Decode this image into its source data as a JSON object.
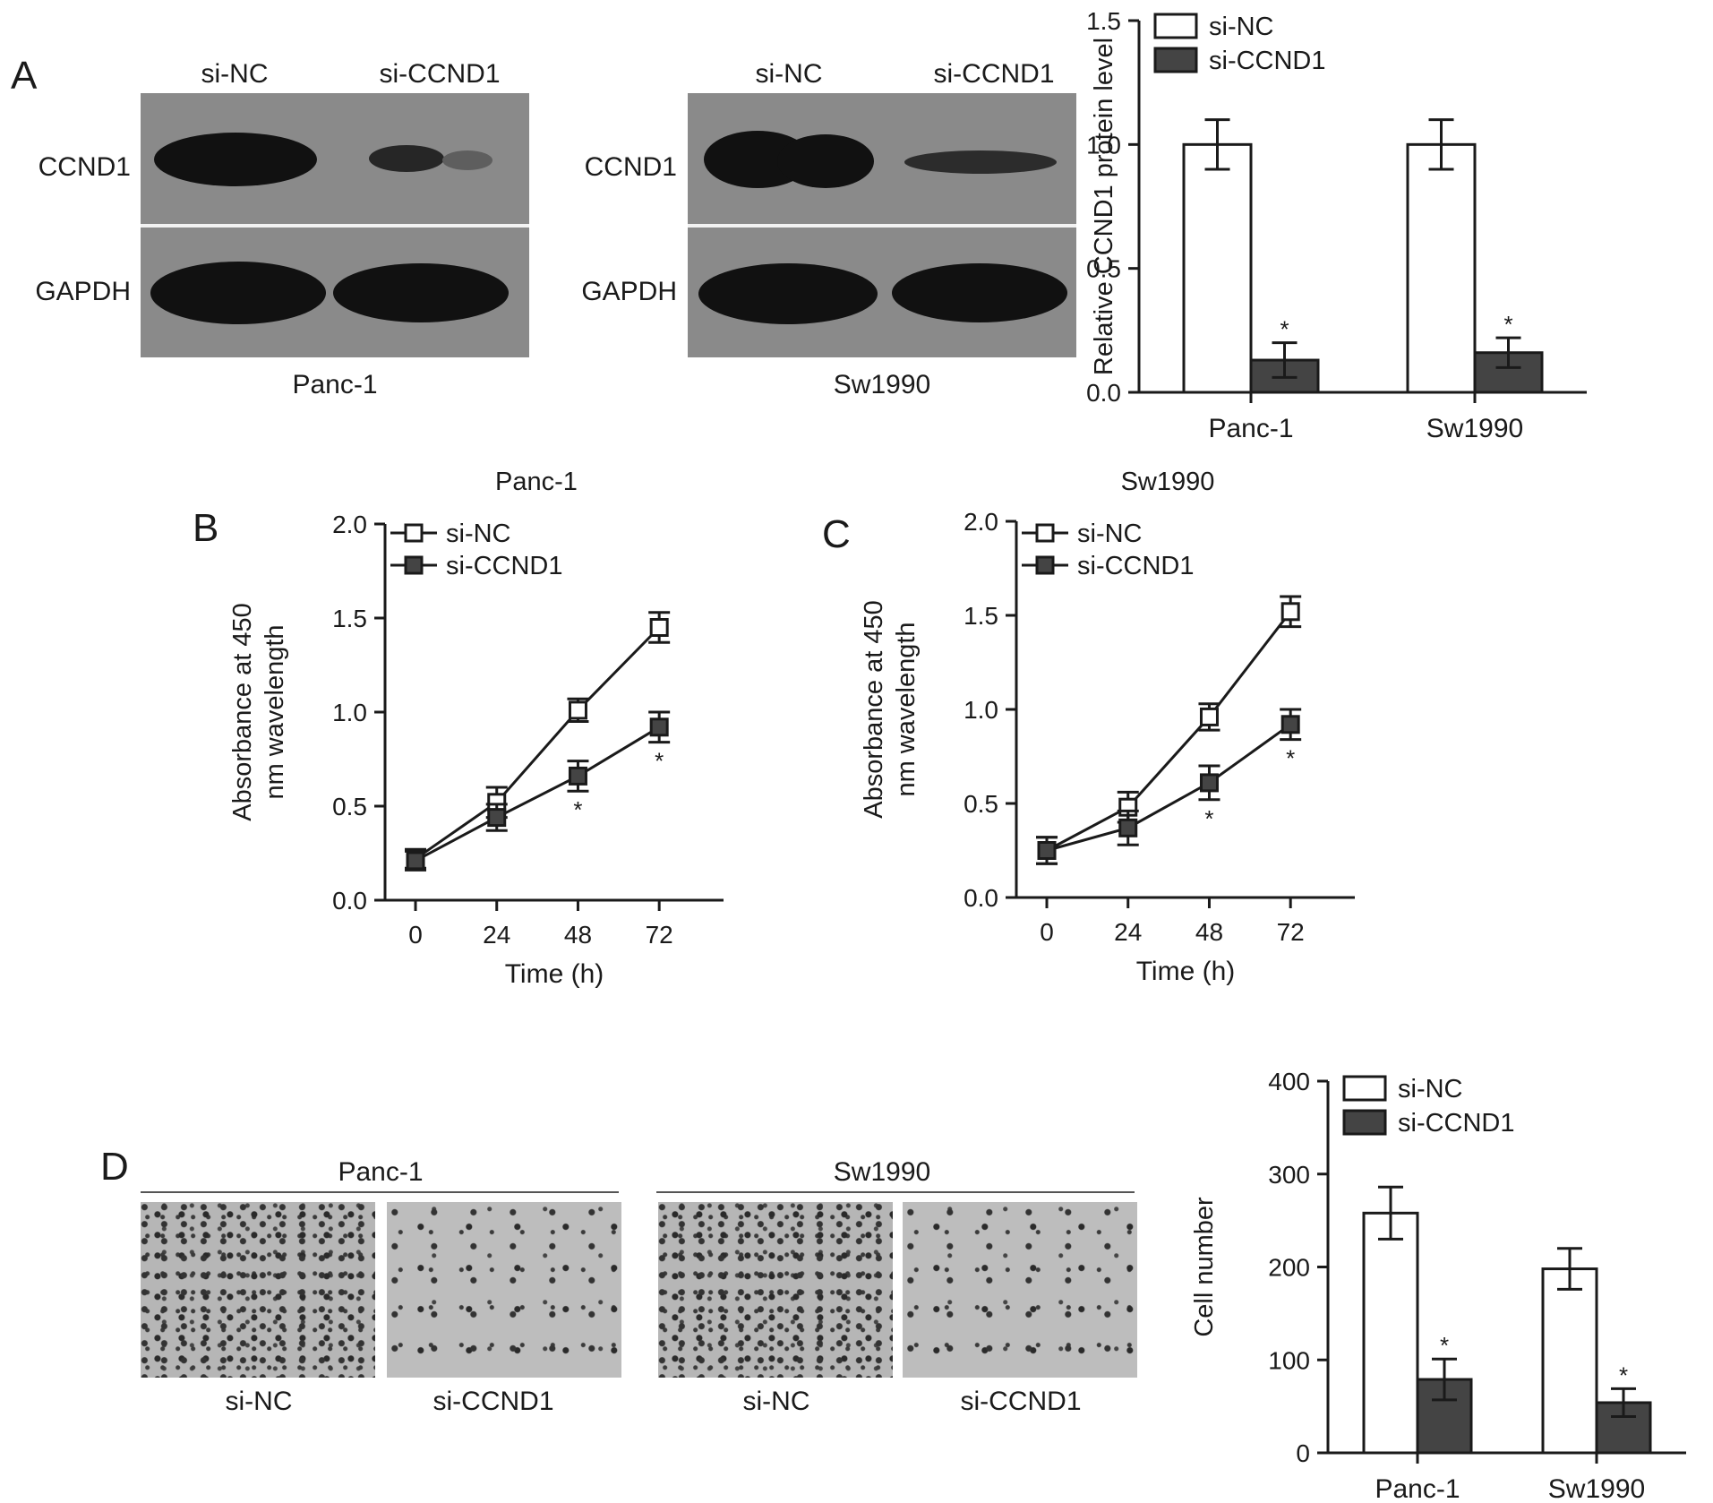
{
  "panel_letters": {
    "a": "A",
    "b": "B",
    "c": "C",
    "d": "D"
  },
  "western": {
    "panc": {
      "cell_line": "Panc-1",
      "lane_1": "si-NC",
      "lane_2": "si-CCND1",
      "row_1": "CCND1",
      "row_2": "GAPDH"
    },
    "sw": {
      "cell_line": "Sw1990",
      "lane_1": "si-NC",
      "lane_2": "si-CCND1",
      "row_1": "CCND1",
      "row_2": "GAPDH"
    }
  },
  "transwell": {
    "panc": {
      "cell_line": "Panc-1",
      "img_1": "si-NC",
      "img_2": "si-CCND1"
    },
    "sw": {
      "cell_line": "Sw1990",
      "img_1": "si-NC",
      "img_2": "si-CCND1"
    }
  },
  "colors": {
    "si_nc": "#ffffff",
    "si_ccnd1": "#444444",
    "axis": "#1a1a1a"
  },
  "chart_data": [
    {
      "id": "protein",
      "type": "bar",
      "title": "",
      "xlabel": "",
      "ylabel": "Relative CCND1 protein level",
      "categories": [
        "Panc-1",
        "Sw1990"
      ],
      "ylim": [
        0,
        1.5
      ],
      "yticks": [
        "0.0",
        "0.5",
        "1.0",
        "1.5"
      ],
      "legend_position": "top-left",
      "series": [
        {
          "name": "si-NC",
          "values": [
            1.0,
            1.0
          ],
          "errors": [
            0.1,
            0.1
          ]
        },
        {
          "name": "si-CCND1",
          "values": [
            0.13,
            0.16
          ],
          "errors": [
            0.07,
            0.06
          ],
          "annotations": [
            "*",
            "*"
          ]
        }
      ]
    },
    {
      "id": "cck8_panc",
      "type": "line",
      "title": "Panc-1",
      "xlabel": "Time (h)",
      "ylabel": "Absorbance at 450 nm wavelength",
      "x": [
        0,
        24,
        48,
        72
      ],
      "xticks": [
        "0",
        "24",
        "48",
        "72"
      ],
      "xlim": [
        -9,
        91
      ],
      "ylim": [
        0,
        2.0
      ],
      "yticks": [
        "0.0",
        "0.5",
        "1.0",
        "1.5",
        "2.0"
      ],
      "legend_position": "top-left",
      "series": [
        {
          "name": "si-NC",
          "values": [
            0.22,
            0.52,
            1.01,
            1.45
          ],
          "errors": [
            0.05,
            0.08,
            0.06,
            0.08
          ]
        },
        {
          "name": "si-CCND1",
          "values": [
            0.21,
            0.44,
            0.66,
            0.92
          ],
          "errors": [
            0.05,
            0.07,
            0.08,
            0.08
          ],
          "annotations": [
            "",
            "",
            "*",
            "*"
          ]
        }
      ]
    },
    {
      "id": "cck8_sw",
      "type": "line",
      "title": "Sw1990",
      "xlabel": "Time (h)",
      "ylabel": "Absorbance at 450 nm wavelength",
      "x": [
        0,
        24,
        48,
        72
      ],
      "xticks": [
        "0",
        "24",
        "48",
        "72"
      ],
      "xlim": [
        -9,
        91
      ],
      "ylim": [
        0,
        2.0
      ],
      "yticks": [
        "0.0",
        "0.5",
        "1.0",
        "1.5",
        "2.0"
      ],
      "legend_position": "top-left",
      "series": [
        {
          "name": "si-NC",
          "values": [
            0.25,
            0.48,
            0.96,
            1.52
          ],
          "errors": [
            0.07,
            0.08,
            0.07,
            0.08
          ]
        },
        {
          "name": "si-CCND1",
          "values": [
            0.25,
            0.37,
            0.61,
            0.92
          ],
          "errors": [
            0.07,
            0.09,
            0.09,
            0.08
          ],
          "annotations": [
            "",
            "",
            "*",
            "*"
          ]
        }
      ]
    },
    {
      "id": "cell_number",
      "type": "bar",
      "title": "",
      "xlabel": "",
      "ylabel": "Cell number",
      "categories": [
        "Panc-1",
        "Sw1990"
      ],
      "ylim": [
        0,
        400
      ],
      "yticks": [
        "0",
        "100",
        "200",
        "300",
        "400"
      ],
      "legend_position": "top-left",
      "series": [
        {
          "name": "si-NC",
          "values": [
            258,
            198
          ],
          "errors": [
            28,
            22
          ]
        },
        {
          "name": "si-CCND1",
          "values": [
            79,
            54
          ],
          "errors": [
            22,
            15
          ],
          "annotations": [
            "*",
            "*"
          ]
        }
      ]
    }
  ]
}
